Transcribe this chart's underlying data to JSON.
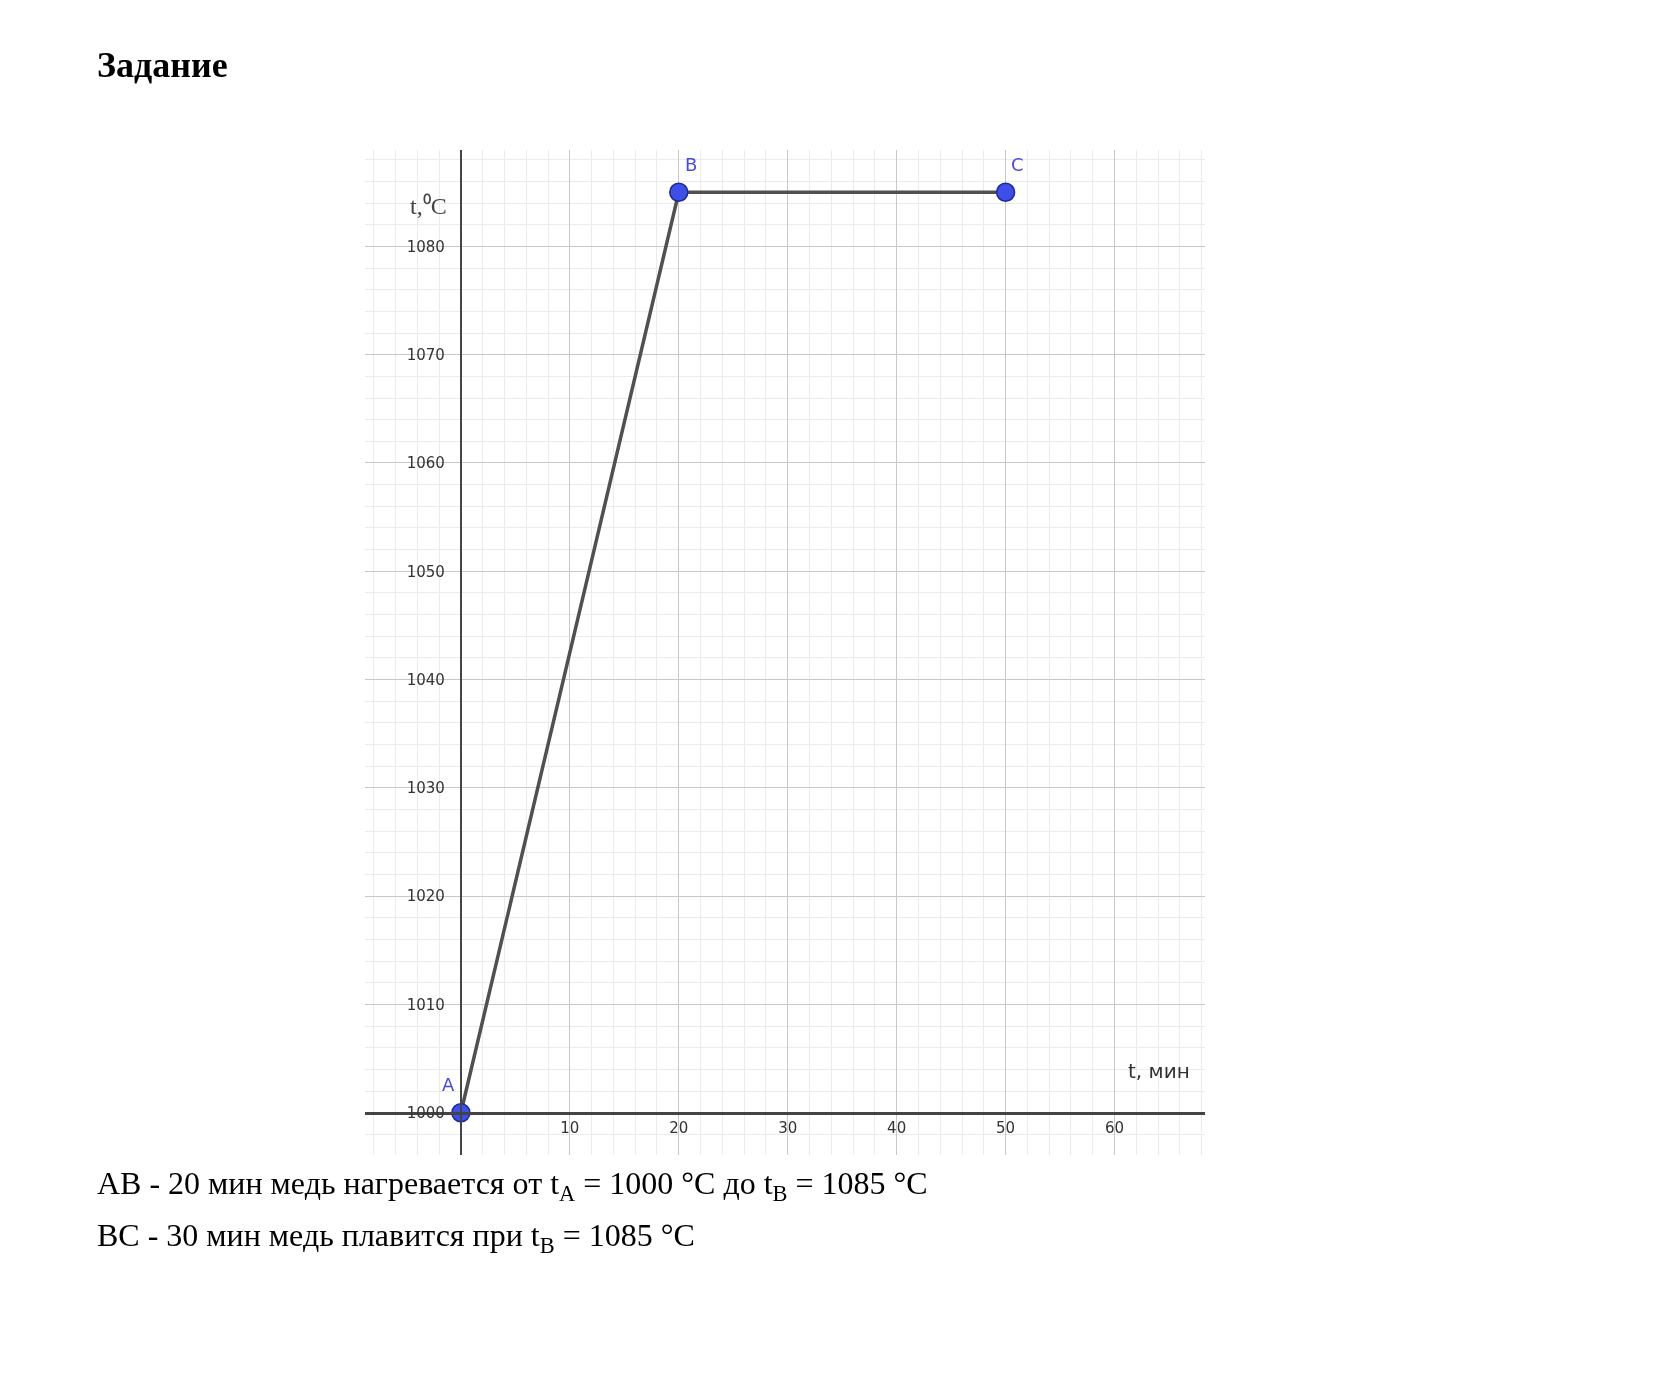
{
  "chart_data": {
    "type": "line",
    "title": "Задание",
    "xlabel": "t, мин",
    "ylabel": "t,⁰C",
    "x": [
      0,
      20,
      50
    ],
    "series": [
      {
        "color": "#505050",
        "colors": [
          "#3d4fe8",
          "#3d4fe8",
          "#3d4fe8"
        ],
        "values": [
          1000,
          1085,
          1085
        ],
        "marker": "circle"
      }
    ],
    "xlim": [
      -8.8,
      68.3
    ],
    "ylim": [
      996.1,
      1088.9
    ],
    "xticks": [
      10,
      20,
      30,
      40,
      50,
      60
    ],
    "yticks": [
      1000,
      1010,
      1020,
      1030,
      1040,
      1050,
      1060,
      1070,
      1080
    ],
    "grid": true,
    "annotations": [
      {
        "text": "A",
        "x": 0,
        "y": 1000
      },
      {
        "text": "B",
        "x": 20,
        "y": 1085
      },
      {
        "text": "C",
        "x": 50,
        "y": 1085
      },
      "AB - 20 мин медь нагревается от t$_{A}$ = 1000 °C до t$_{B}$ = 1085 °C",
      "BC - 30 мин медь плавится при t$_{B}$ = 1085 °C"
    ]
  }
}
